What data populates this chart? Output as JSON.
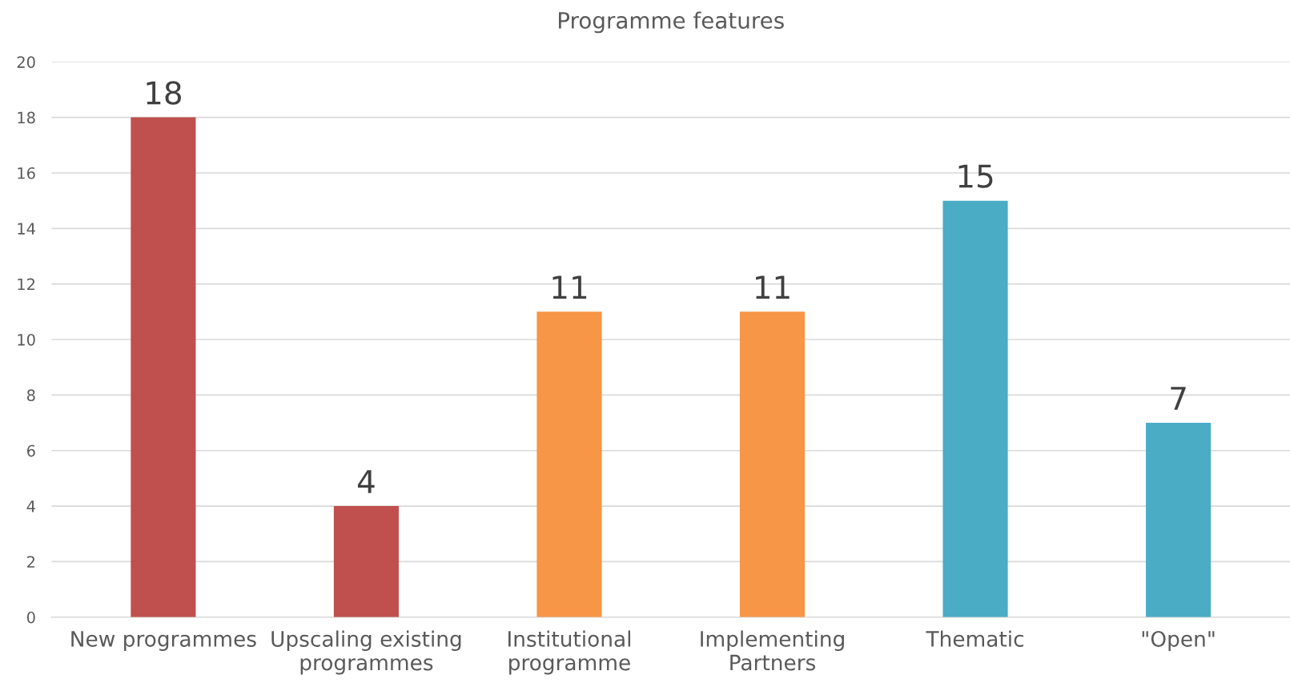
{
  "chart_data": {
    "type": "bar",
    "title": "Programme features",
    "categories": [
      "New programmes",
      "Upscaling existing\nprogrammes",
      "Institutional\nprogramme",
      "Implementing\nPartners",
      "Thematic",
      "\"Open\""
    ],
    "values": [
      18,
      4,
      11,
      11,
      15,
      7
    ],
    "colors": [
      "#c0504d",
      "#c0504d",
      "#f79646",
      "#f79646",
      "#4bacc6",
      "#4bacc6"
    ],
    "ylim": [
      0,
      20
    ],
    "yticks": [
      0,
      2,
      4,
      6,
      8,
      10,
      12,
      14,
      16,
      18,
      20
    ],
    "grid": "y",
    "data_labels": true
  }
}
